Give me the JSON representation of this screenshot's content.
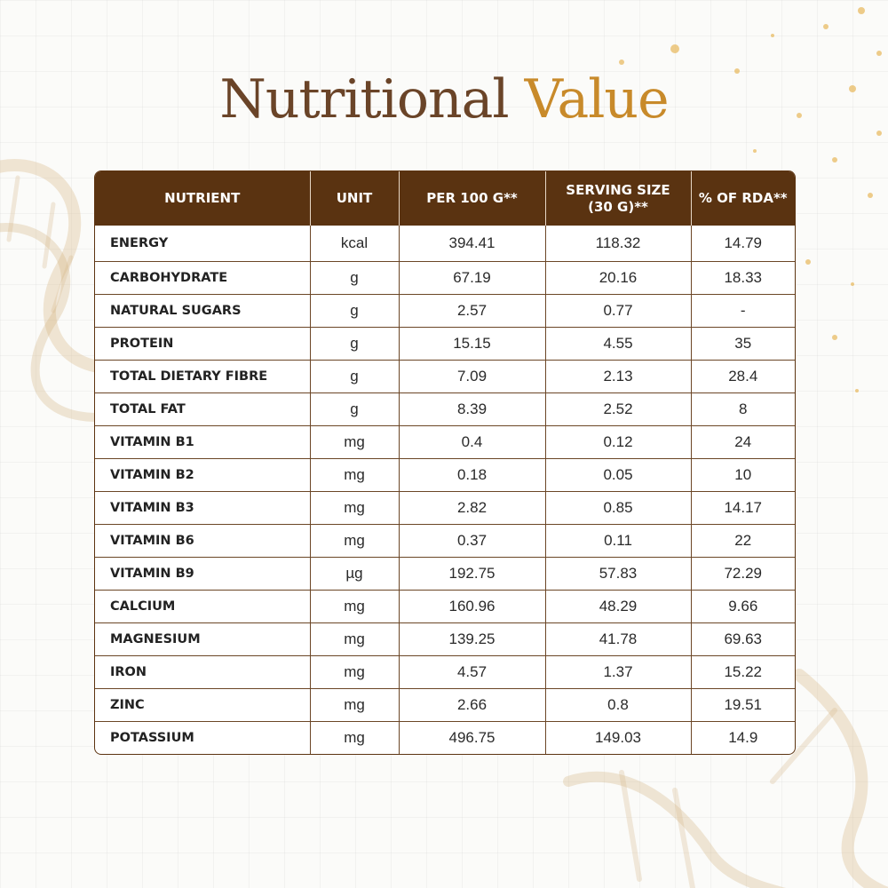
{
  "title": {
    "part1": "Nutritional",
    "part2": "Value"
  },
  "colors": {
    "header_bg": "#5a3311",
    "title_dark": "#6a4428",
    "title_accent": "#c88a2a"
  },
  "table": {
    "headers": [
      "NUTRIENT",
      "UNIT",
      "PER 100 G**",
      "SERVING SIZE\n(30 G)**",
      "% OF RDA**"
    ],
    "rows": [
      [
        "ENERGY",
        "kcal",
        "394.41",
        "118.32",
        "14.79"
      ],
      [
        "CARBOHYDRATE",
        "g",
        "67.19",
        "20.16",
        "18.33"
      ],
      [
        "NATURAL SUGARS",
        "g",
        "2.57",
        "0.77",
        "-"
      ],
      [
        "PROTEIN",
        "g",
        "15.15",
        "4.55",
        "35"
      ],
      [
        "TOTAL DIETARY FIBRE",
        "g",
        "7.09",
        "2.13",
        "28.4"
      ],
      [
        "TOTAL FAT",
        "g",
        "8.39",
        "2.52",
        "8"
      ],
      [
        "VITAMIN B1",
        "mg",
        "0.4",
        "0.12",
        "24"
      ],
      [
        "VITAMIN B2",
        "mg",
        "0.18",
        "0.05",
        "10"
      ],
      [
        "VITAMIN B3",
        "mg",
        "2.82",
        "0.85",
        "14.17"
      ],
      [
        "VITAMIN B6",
        "mg",
        "0.37",
        "0.11",
        "22"
      ],
      [
        "VITAMIN B9",
        "µg",
        "192.75",
        "57.83",
        "72.29"
      ],
      [
        "CALCIUM",
        "mg",
        "160.96",
        "48.29",
        "9.66"
      ],
      [
        "MAGNESIUM",
        "mg",
        "139.25",
        "41.78",
        "69.63"
      ],
      [
        "IRON",
        "mg",
        "4.57",
        "1.37",
        "15.22"
      ],
      [
        "ZINC",
        "mg",
        "2.66",
        "0.8",
        "19.51"
      ],
      [
        "POTASSIUM",
        "mg",
        "496.75",
        "149.03",
        "14.9"
      ]
    ]
  }
}
